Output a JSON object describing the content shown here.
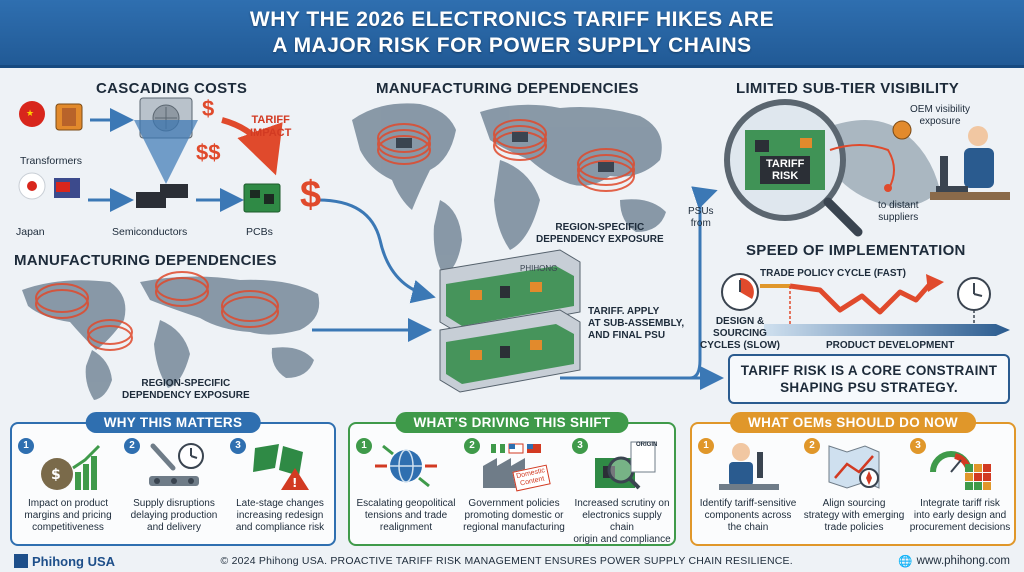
{
  "title": {
    "line1": "WHY THE 2026 ELECTRONICS TARIFF HIKES ARE",
    "line2": "A MAJOR RISK FOR POWER SUPPLY CHAINS"
  },
  "cascading": {
    "title": "CASCADING COSTS",
    "transformers": "Transformers",
    "japan": "Japan",
    "semiconductors": "Semiconductors",
    "pcbs": "PCBs",
    "tariff_impact_1": "TARIFF",
    "tariff_impact_2": "IMPACT",
    "dollar1": "$",
    "dollar2": "$$",
    "dollar3": "$"
  },
  "manufacturing_center": {
    "title": "MANUFACTURING DEPENDENCIES",
    "exposure_1": "REGION-SPECIFIC",
    "exposure_2": "DEPENDENCY EXPOSURE"
  },
  "manufacturing_left": {
    "title": "MANUFACTURING DEPENDENCIES",
    "exposure_1": "REGION-SPECIFIC",
    "exposure_2": "DEPENDENCY EXPOSURE"
  },
  "psu": {
    "brand": "PHIHONG",
    "apply_1": "TARIFF. APPLY",
    "apply_2": "AT SUB-ASSEMBLY,",
    "apply_3": "AND FINAL PSU"
  },
  "visibility": {
    "title": "LIMITED SUB-TIER VISIBILITY",
    "tariff_risk_1": "TARIFF",
    "tariff_risk_2": "RISK",
    "oem_1": "OEM visibility",
    "oem_2": "exposure",
    "distant_1": "to distant",
    "distant_2": "suppliers",
    "psus_1": "PSUs",
    "psus_2": "from"
  },
  "speed": {
    "title": "SPEED OF IMPLEMENTATION",
    "trade_cycle": "TRADE POLICY CYCLE (FAST)",
    "design_1": "DESIGN &",
    "design_2": "SOURCING",
    "design_3": "CYCLES (SLOW)",
    "product_dev": "PRODUCT DEVELOPMENT"
  },
  "callout": {
    "line1": "TARIFF RISK IS A CORE CONSTRAINT",
    "line2": "SHAPING PSU STRATEGY."
  },
  "why": {
    "title": "WHY THIS MATTERS",
    "items": [
      {
        "num": "1",
        "text_1": "Impact on product",
        "text_2": "margins and pricing",
        "text_3": "competitiveness"
      },
      {
        "num": "2",
        "text_1": "Supply disruptions",
        "text_2": "delaying production",
        "text_3": "and delivery"
      },
      {
        "num": "3",
        "text_1": "Late-stage changes",
        "text_2": "increasing redesign",
        "text_3": "and compliance risk"
      }
    ]
  },
  "driving": {
    "title": "WHAT’S DRIVING THIS SHIFT",
    "items": [
      {
        "num": "1",
        "text_1": "Escalating geopolitical",
        "text_2": "tensions and trade",
        "text_3": "realignment"
      },
      {
        "num": "2",
        "text_1": "Government policies",
        "text_2": "promoting domestic or",
        "text_3": "regional manufacturing",
        "stamp_1": "Domestic",
        "stamp_2": "Content"
      },
      {
        "num": "3",
        "text_1": "Increased scrutiny on",
        "text_2": "electronics supply chain",
        "text_3": "origin and compliance",
        "origin": "ORIGIN"
      }
    ]
  },
  "oems": {
    "title": "WHAT OEMs SHOULD DO NOW",
    "items": [
      {
        "num": "1",
        "text_1": "Identify tariff-sensitive",
        "text_2": "components across",
        "text_3": "the chain"
      },
      {
        "num": "2",
        "text_1": "Align sourcing",
        "text_2": "strategy with emerging",
        "text_3": "trade policies"
      },
      {
        "num": "3",
        "text_1": "Integrate tariff risk",
        "text_2": "into early design and",
        "text_3": "procurement decisions"
      }
    ]
  },
  "footer": {
    "logo": "Phihong USA",
    "copyright": "© 2024 Phihong USA. PROACTIVE TARIFF RISK MANAGEMENT ENSURES POWER SUPPLY CHAIN RESILIENCE.",
    "website": "www.phihong.com"
  },
  "colors": {
    "blue": "#2f6fb0",
    "green": "#3f9a4a",
    "orange": "#e0972a",
    "red": "#d23a22"
  }
}
